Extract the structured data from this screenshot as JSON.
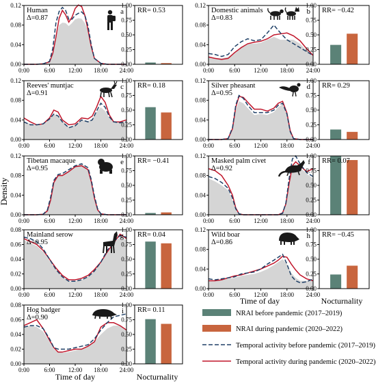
{
  "figure": {
    "ylabel": "Density",
    "xlabel_left": "Time of day",
    "xlabel_right": "Time of day",
    "bar_xlabel_right": "Nocturnality",
    "bar_xlabel_bottom": "Nocturnality"
  },
  "colors": {
    "bar_before": "#5b8277",
    "bar_during": "#c8653e",
    "line_before": "#1e3f66",
    "line_during": "#c0152a",
    "kde_fill": "#d5d5d5"
  },
  "legend": {
    "items": [
      {
        "label": "NRAI before pandemic (2017–2019)",
        "kind": "bar-before"
      },
      {
        "label": "NRAI during pandemic (2020–2022)",
        "kind": "bar-during"
      },
      {
        "label": "Temporal activity before pandemic (2017–2019)",
        "kind": "line-before"
      },
      {
        "label": "Temporal activity during pandemic (2020–2022)",
        "kind": "line-during"
      }
    ]
  },
  "chart_data": [
    {
      "type": "area",
      "species": "Human",
      "delta": "Δ=0.87",
      "letter": "a",
      "icon": "human-silhouette-icon",
      "x": [
        0,
        1.5,
        3,
        4.5,
        6,
        6.75,
        7.5,
        8.25,
        9,
        9.75,
        10.5,
        11.25,
        12,
        12.75,
        13.5,
        14.25,
        15,
        15.75,
        16.5,
        18,
        19.5,
        21,
        22.5,
        24
      ],
      "overlap": [
        0,
        0,
        0,
        0.001,
        0.004,
        0.02,
        0.052,
        0.08,
        0.085,
        0.084,
        0.078,
        0.084,
        0.092,
        0.094,
        0.093,
        0.084,
        0.068,
        0.038,
        0.012,
        0.002,
        0,
        0,
        0,
        0
      ],
      "before": [
        0,
        0,
        0,
        0.001,
        0.006,
        0.032,
        0.085,
        0.108,
        0.116,
        0.11,
        0.092,
        0.092,
        0.1,
        0.104,
        0.107,
        0.1,
        0.078,
        0.04,
        0.012,
        0.002,
        0,
        0,
        0,
        0
      ],
      "during": [
        0,
        0,
        0,
        0.001,
        0.005,
        0.022,
        0.056,
        0.094,
        0.11,
        0.101,
        0.086,
        0.096,
        0.114,
        0.121,
        0.118,
        0.1,
        0.07,
        0.036,
        0.012,
        0.002,
        0,
        0,
        0,
        0
      ],
      "ylim": [
        0,
        0.12
      ],
      "yticks": [
        0,
        0.04,
        0.08,
        0.12
      ],
      "ytick_labels": [
        "0.00",
        "0.04",
        "0.08",
        "0.12"
      ],
      "xticks": [
        0,
        6,
        12,
        18,
        24
      ],
      "xtick_labels": [
        "0:00",
        "6:00",
        "12:00",
        "18:00",
        "24:00"
      ],
      "bars": {
        "rr": "RR= 0.53",
        "before": 0.03,
        "during": 0.02
      }
    },
    {
      "type": "area",
      "species": "Domestic animals",
      "delta": "Δ=0.83",
      "letter": "b",
      "icon": "domestic-animals-icon",
      "x": [
        0,
        1.5,
        3,
        4.5,
        6,
        7.5,
        9,
        10.5,
        12,
        13.5,
        15,
        16.5,
        18,
        19.5,
        21,
        22.5,
        24
      ],
      "overlap": [
        0.015,
        0.013,
        0.012,
        0.015,
        0.024,
        0.036,
        0.042,
        0.042,
        0.044,
        0.05,
        0.056,
        0.05,
        0.05,
        0.05,
        0.042,
        0.028,
        0.016
      ],
      "before": [
        0.022,
        0.02,
        0.016,
        0.02,
        0.036,
        0.046,
        0.052,
        0.048,
        0.05,
        0.064,
        0.08,
        0.064,
        0.05,
        0.042,
        0.034,
        0.026,
        0.018
      ],
      "during": [
        0.015,
        0.012,
        0.01,
        0.012,
        0.024,
        0.034,
        0.042,
        0.045,
        0.047,
        0.052,
        0.06,
        0.062,
        0.064,
        0.058,
        0.048,
        0.032,
        0.018
      ],
      "ylim": [
        0,
        0.12
      ],
      "yticks": [
        0,
        0.04,
        0.08,
        0.12
      ],
      "ytick_labels": [
        "0.00",
        "0.04",
        "0.08",
        "0.12"
      ],
      "xticks": [
        0,
        6,
        12,
        18,
        24
      ],
      "xtick_labels": [
        "0:00",
        "6:00",
        "12:00",
        "18:00",
        "24:00"
      ],
      "bars": {
        "rr": "RR= −0.42",
        "before": 0.33,
        "during": 0.52
      }
    },
    {
      "type": "area",
      "species": "Reeves' muntjac",
      "delta": "Δ=0.91",
      "letter": "c",
      "icon": "muntjac-icon",
      "x": [
        0,
        1.5,
        3,
        4.5,
        6,
        7,
        8,
        9,
        10.5,
        12,
        13.5,
        15,
        16,
        17,
        18,
        19,
        20,
        21,
        22.5,
        24
      ],
      "overlap": [
        0.036,
        0.032,
        0.03,
        0.032,
        0.042,
        0.052,
        0.048,
        0.038,
        0.026,
        0.03,
        0.04,
        0.038,
        0.042,
        0.056,
        0.066,
        0.058,
        0.044,
        0.038,
        0.036,
        0.036
      ],
      "before": [
        0.036,
        0.03,
        0.03,
        0.032,
        0.042,
        0.052,
        0.048,
        0.036,
        0.024,
        0.028,
        0.04,
        0.036,
        0.04,
        0.058,
        0.074,
        0.066,
        0.046,
        0.036,
        0.034,
        0.036
      ],
      "during": [
        0.044,
        0.036,
        0.03,
        0.032,
        0.044,
        0.06,
        0.056,
        0.04,
        0.03,
        0.032,
        0.044,
        0.042,
        0.048,
        0.066,
        0.088,
        0.076,
        0.05,
        0.036,
        0.036,
        0.04
      ],
      "ylim": [
        0,
        0.12
      ],
      "yticks": [
        0,
        0.04,
        0.08,
        0.12
      ],
      "ytick_labels": [
        "0.00",
        "0.04",
        "0.08",
        "0.12"
      ],
      "xticks": [
        0,
        6,
        12,
        18,
        24
      ],
      "xtick_labels": [
        "0:00",
        "6:00",
        "12:00",
        "18:00",
        "24:00"
      ],
      "bars": {
        "rr": "RR= 0.18",
        "before": 0.55,
        "during": 0.46
      }
    },
    {
      "type": "area",
      "species": "Silver pheasant",
      "delta": "Δ=0.95",
      "letter": "d",
      "icon": "pheasant-icon",
      "x": [
        0,
        1.5,
        3,
        4.5,
        5.5,
        6.25,
        7,
        8,
        9,
        10.5,
        12,
        13.5,
        15,
        16,
        17,
        18,
        18.75,
        19.5,
        21,
        22.5,
        24
      ],
      "overlap": [
        0,
        0,
        0,
        0.002,
        0.02,
        0.06,
        0.078,
        0.074,
        0.064,
        0.05,
        0.052,
        0.05,
        0.056,
        0.066,
        0.072,
        0.05,
        0.016,
        0.002,
        0,
        0,
        0
      ],
      "before": [
        0,
        0,
        0,
        0.002,
        0.024,
        0.07,
        0.09,
        0.084,
        0.07,
        0.055,
        0.055,
        0.055,
        0.06,
        0.07,
        0.074,
        0.052,
        0.016,
        0.002,
        0,
        0,
        0
      ],
      "during": [
        0,
        0,
        0,
        0.002,
        0.022,
        0.066,
        0.088,
        0.086,
        0.076,
        0.062,
        0.062,
        0.058,
        0.064,
        0.074,
        0.078,
        0.054,
        0.018,
        0.002,
        0,
        0,
        0
      ],
      "ylim": [
        0,
        0.12
      ],
      "yticks": [
        0,
        0.04,
        0.08,
        0.12
      ],
      "ytick_labels": [
        "0.00",
        "0.04",
        "0.08",
        "0.12"
      ],
      "xticks": [
        0,
        6,
        12,
        18,
        24
      ],
      "xtick_labels": [
        "0:00",
        "6:00",
        "12:00",
        "18:00",
        "24:00"
      ],
      "bars": {
        "rr": "RR= 0.29",
        "before": 0.17,
        "during": 0.13
      }
    },
    {
      "type": "area",
      "species": "Tibetan macaque",
      "delta": "Δ=0.95",
      "letter": "e",
      "icon": "macaque-icon",
      "x": [
        0,
        1.5,
        3,
        4.5,
        5.5,
        6.25,
        7,
        8,
        9,
        10.5,
        12,
        13.5,
        15,
        15.75,
        16.5,
        17.25,
        18,
        19.5,
        21,
        22.5,
        24
      ],
      "overlap": [
        0,
        0,
        0,
        0.001,
        0.008,
        0.03,
        0.064,
        0.08,
        0.082,
        0.09,
        0.1,
        0.104,
        0.094,
        0.07,
        0.036,
        0.01,
        0.002,
        0,
        0,
        0,
        0
      ],
      "before": [
        0,
        0,
        0,
        0.001,
        0.01,
        0.036,
        0.07,
        0.082,
        0.084,
        0.092,
        0.1,
        0.104,
        0.096,
        0.072,
        0.038,
        0.012,
        0.002,
        0,
        0,
        0,
        0
      ],
      "during": [
        0,
        0,
        0,
        0.001,
        0.008,
        0.03,
        0.066,
        0.08,
        0.08,
        0.088,
        0.098,
        0.1,
        0.092,
        0.068,
        0.034,
        0.01,
        0.002,
        0,
        0,
        0,
        0
      ],
      "ylim": [
        0,
        0.12
      ],
      "yticks": [
        0,
        0.04,
        0.08,
        0.12
      ],
      "ytick_labels": [
        "0.00",
        "0.04",
        "0.08",
        "0.12"
      ],
      "xticks": [
        0,
        6,
        12,
        18,
        24
      ],
      "xtick_labels": [
        "0:00",
        "6:00",
        "12:00",
        "18:00",
        "24:00"
      ],
      "bars": {
        "rr": "RR= −0.41",
        "before": 0.03,
        "during": 0.04
      }
    },
    {
      "type": "area",
      "species": "Masked palm civet",
      "delta": "Δ=0.92",
      "letter": "f",
      "icon": "civet-icon",
      "x": [
        0,
        1.5,
        3,
        4.5,
        5.5,
        6.25,
        7,
        8,
        9,
        10.5,
        12,
        13.5,
        15,
        16,
        17,
        17.75,
        18.5,
        19.25,
        20,
        21,
        22.5,
        24
      ],
      "overlap": [
        0.074,
        0.068,
        0.06,
        0.05,
        0.03,
        0.01,
        0.002,
        0,
        0,
        0,
        0,
        0,
        0,
        0,
        0.003,
        0.02,
        0.06,
        0.096,
        0.104,
        0.096,
        0.084,
        0.074
      ],
      "before": [
        0.078,
        0.074,
        0.066,
        0.054,
        0.034,
        0.012,
        0.002,
        0,
        0,
        0,
        0,
        0,
        0,
        0,
        0.003,
        0.024,
        0.074,
        0.114,
        0.12,
        0.104,
        0.086,
        0.078
      ],
      "during": [
        0.094,
        0.09,
        0.08,
        0.06,
        0.04,
        0.014,
        0.002,
        0,
        0,
        0,
        0,
        0,
        0,
        0,
        0.004,
        0.022,
        0.064,
        0.1,
        0.108,
        0.1,
        0.088,
        0.094
      ],
      "ylim": [
        0,
        0.12
      ],
      "yticks": [
        0,
        0.04,
        0.08,
        0.12
      ],
      "ytick_labels": [
        "0.00",
        "0.04",
        "0.08",
        "0.12"
      ],
      "xticks": [
        0,
        6,
        12,
        18,
        24
      ],
      "xtick_labels": [
        "0:00",
        "6:00",
        "12:00",
        "18:00",
        "24:00"
      ],
      "bars": {
        "rr": "RR= 0.07",
        "before": 1.0,
        "during": 0.93
      }
    },
    {
      "type": "area",
      "species": "Mainland serow",
      "delta": "Δ=0.95",
      "letter": "g",
      "icon": "serow-icon",
      "x": [
        0,
        1.5,
        3,
        4.5,
        6,
        7.5,
        9,
        10.5,
        12,
        13.5,
        15,
        16.5,
        18,
        19.5,
        21,
        22.5,
        24
      ],
      "overlap": [
        0.066,
        0.062,
        0.058,
        0.05,
        0.038,
        0.026,
        0.016,
        0.01,
        0.01,
        0.012,
        0.016,
        0.024,
        0.036,
        0.05,
        0.062,
        0.07,
        0.066
      ],
      "before": [
        0.07,
        0.068,
        0.064,
        0.054,
        0.04,
        0.026,
        0.016,
        0.01,
        0.01,
        0.012,
        0.016,
        0.024,
        0.036,
        0.052,
        0.064,
        0.072,
        0.07
      ],
      "during": [
        0.068,
        0.064,
        0.06,
        0.052,
        0.04,
        0.028,
        0.018,
        0.012,
        0.012,
        0.014,
        0.018,
        0.026,
        0.036,
        0.05,
        0.062,
        0.074,
        0.068
      ],
      "ylim": [
        0,
        0.08
      ],
      "yticks": [
        0,
        0.02,
        0.04,
        0.06,
        0.08
      ],
      "ytick_labels": [
        "0.00",
        "0.02",
        "0.04",
        "0.06",
        "0.08"
      ],
      "xticks": [
        0,
        6,
        12,
        18,
        24
      ],
      "xtick_labels": [
        "0:00",
        "6:00",
        "12:00",
        "18:00",
        "24:00"
      ],
      "bars": {
        "rr": "RR= 0.04",
        "before": 0.8,
        "during": 0.77
      }
    },
    {
      "type": "area",
      "species": "Wild boar",
      "delta": "Δ=0.86",
      "letter": "h",
      "icon": "boar-icon",
      "x": [
        0,
        1.5,
        3,
        4.5,
        6,
        7.5,
        9,
        10.5,
        12,
        13.5,
        15,
        16,
        17,
        18,
        19,
        20,
        21,
        22.5,
        24
      ],
      "overlap": [
        0.016,
        0.016,
        0.018,
        0.02,
        0.022,
        0.026,
        0.028,
        0.03,
        0.034,
        0.04,
        0.048,
        0.054,
        0.06,
        0.05,
        0.032,
        0.022,
        0.016,
        0.016,
        0.016
      ],
      "before": [
        0.02,
        0.018,
        0.02,
        0.022,
        0.024,
        0.03,
        0.032,
        0.034,
        0.04,
        0.05,
        0.058,
        0.064,
        0.07,
        0.05,
        0.026,
        0.016,
        0.012,
        0.014,
        0.02
      ],
      "during": [
        0.016,
        0.016,
        0.018,
        0.022,
        0.026,
        0.028,
        0.032,
        0.036,
        0.04,
        0.046,
        0.052,
        0.058,
        0.066,
        0.064,
        0.05,
        0.038,
        0.028,
        0.02,
        0.016
      ],
      "ylim": [
        0,
        0.12
      ],
      "yticks": [
        0,
        0.04,
        0.08,
        0.12
      ],
      "ytick_labels": [
        "0.00",
        "0.04",
        "0.08",
        "0.12"
      ],
      "xticks": [
        0,
        6,
        12,
        18,
        24
      ],
      "xtick_labels": [
        "0:00",
        "6:00",
        "12:00",
        "18:00",
        "24:00"
      ],
      "bars": {
        "rr": "RR= −0.45",
        "before": 0.24,
        "during": 0.39
      }
    },
    {
      "type": "area",
      "species": "Hog badger",
      "delta": "Δ=0.90",
      "letter": "i",
      "icon": "badger-icon",
      "x": [
        0,
        1.5,
        3,
        4.5,
        6,
        7,
        8,
        9,
        10.5,
        12,
        13.5,
        15,
        16.5,
        18,
        19.5,
        21,
        22.5,
        24
      ],
      "overlap": [
        0.05,
        0.052,
        0.05,
        0.044,
        0.03,
        0.02,
        0.016,
        0.015,
        0.016,
        0.018,
        0.02,
        0.024,
        0.03,
        0.04,
        0.048,
        0.052,
        0.052,
        0.046
      ],
      "before": [
        0.05,
        0.052,
        0.052,
        0.048,
        0.034,
        0.022,
        0.02,
        0.02,
        0.02,
        0.022,
        0.024,
        0.026,
        0.034,
        0.046,
        0.056,
        0.064,
        0.066,
        0.068
      ],
      "during": [
        0.052,
        0.056,
        0.06,
        0.048,
        0.032,
        0.022,
        0.016,
        0.016,
        0.018,
        0.02,
        0.02,
        0.024,
        0.03,
        0.05,
        0.056,
        0.056,
        0.052,
        0.046
      ],
      "ylim": [
        0,
        0.08
      ],
      "yticks": [
        0,
        0.02,
        0.04,
        0.06,
        0.08
      ],
      "ytick_labels": [
        "0.00",
        "0.02",
        "0.04",
        "0.06",
        "0.08"
      ],
      "xticks": [
        0,
        6,
        12,
        18,
        24
      ],
      "xtick_labels": [
        "0:00",
        "6:00",
        "12:00",
        "18:00",
        "24:00"
      ],
      "bars": {
        "rr": "RR= 0.11",
        "before": 0.76,
        "during": 0.68
      }
    }
  ],
  "bar_axis": {
    "ylim": [
      0,
      1
    ],
    "yticks": [
      0,
      0.25,
      0.5,
      0.75,
      1
    ],
    "ytick_labels": [
      "0.00",
      "0.25",
      "0.50",
      "0.75",
      "1.00"
    ]
  }
}
